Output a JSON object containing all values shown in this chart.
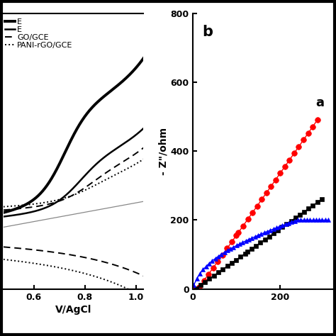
{
  "panel_a": {
    "legend_lines": [
      "E",
      "E",
      "GO/GCE",
      "PANI-rGO/GCE"
    ],
    "xlabel": "V/AgCl",
    "x_ticks": [
      0.6,
      0.8,
      1.0
    ],
    "x_min": 0.48,
    "x_max": 1.03,
    "y_min": -0.55,
    "y_max": 1.1
  },
  "panel_b": {
    "label": "b",
    "ylabel": "- Z\"/ohm",
    "y_ticks": [
      0,
      200,
      400,
      600,
      800
    ],
    "x_ticks": [
      0,
      200
    ],
    "y_max": 800,
    "x_max": 320,
    "annotation": "a"
  },
  "bg_color": "#ffffff"
}
